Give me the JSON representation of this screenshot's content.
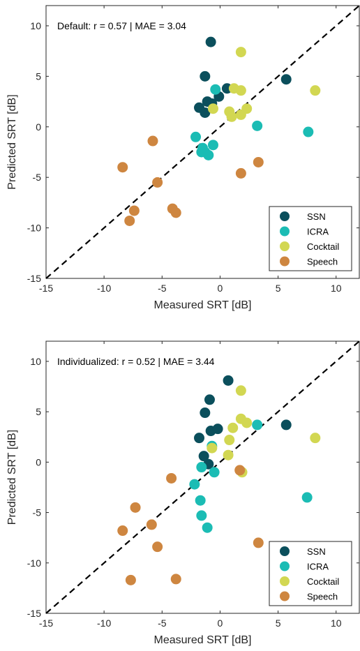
{
  "chart_data": [
    {
      "type": "scatter",
      "title": "",
      "annotation": "Default:  r = 0.57 | MAE = 3.04",
      "xlabel": "Measured SRT [dB]",
      "ylabel": "Predicted SRT [dB]",
      "xlim": [
        -15,
        12
      ],
      "ylim": [
        -15,
        12
      ],
      "xticks": [
        -15,
        -10,
        -5,
        0,
        5,
        10
      ],
      "yticks": [
        -15,
        -10,
        -5,
        0,
        5,
        10
      ],
      "identity_line": true,
      "grid": false,
      "legend_position": "bottom-right",
      "series": [
        {
          "name": "SSN",
          "color": "#0b4f5c",
          "points": [
            [
              -0.8,
              8.4
            ],
            [
              -1.3,
              5.0
            ],
            [
              0.6,
              3.8
            ],
            [
              5.7,
              4.7
            ],
            [
              -1.1,
              2.5
            ],
            [
              -1.8,
              1.9
            ],
            [
              -1.3,
              1.4
            ],
            [
              -0.1,
              3.0
            ],
            [
              -0.7,
              2.3
            ]
          ]
        },
        {
          "name": "ICRA",
          "color": "#1bbcb4",
          "points": [
            [
              -0.4,
              3.7
            ],
            [
              -2.1,
              -1.0
            ],
            [
              -1.5,
              -2.1
            ],
            [
              -1.3,
              -2.5
            ],
            [
              -0.6,
              -1.8
            ],
            [
              -1.6,
              -2.5
            ],
            [
              -1.0,
              -2.8
            ],
            [
              3.2,
              0.1
            ],
            [
              7.6,
              -0.5
            ]
          ]
        },
        {
          "name": "Cocktail",
          "color": "#d2d752",
          "points": [
            [
              1.8,
              7.4
            ],
            [
              1.2,
              3.8
            ],
            [
              1.8,
              3.6
            ],
            [
              -0.6,
              1.8
            ],
            [
              0.8,
              1.5
            ],
            [
              1.0,
              1.0
            ],
            [
              1.8,
              1.2
            ],
            [
              2.3,
              1.8
            ],
            [
              8.2,
              3.6
            ]
          ]
        },
        {
          "name": "Speech",
          "color": "#ce8640",
          "points": [
            [
              -8.4,
              -4.0
            ],
            [
              -5.8,
              -1.4
            ],
            [
              -5.4,
              -5.5
            ],
            [
              -7.4,
              -8.3
            ],
            [
              -7.8,
              -9.3
            ],
            [
              -4.1,
              -8.1
            ],
            [
              -3.8,
              -8.5
            ],
            [
              1.8,
              -4.6
            ],
            [
              3.3,
              -3.5
            ]
          ]
        }
      ]
    },
    {
      "type": "scatter",
      "title": "",
      "annotation": "Individualized:  r = 0.52 | MAE = 3.44",
      "xlabel": "Measured SRT [dB]",
      "ylabel": "Predicted SRT [dB]",
      "xlim": [
        -15,
        12
      ],
      "ylim": [
        -15,
        12
      ],
      "xticks": [
        -15,
        -10,
        -5,
        0,
        5,
        10
      ],
      "yticks": [
        -15,
        -10,
        -5,
        0,
        5,
        10
      ],
      "identity_line": true,
      "grid": false,
      "legend_position": "bottom-right",
      "series": [
        {
          "name": "SSN",
          "color": "#0b4f5c",
          "points": [
            [
              0.7,
              8.1
            ],
            [
              -0.9,
              6.2
            ],
            [
              -1.3,
              4.9
            ],
            [
              -0.8,
              3.1
            ],
            [
              -0.2,
              3.3
            ],
            [
              -1.8,
              2.4
            ],
            [
              5.7,
              3.7
            ],
            [
              -1.4,
              0.6
            ],
            [
              -1.0,
              -0.2
            ]
          ]
        },
        {
          "name": "ICRA",
          "color": "#1bbcb4",
          "points": [
            [
              3.2,
              3.7
            ],
            [
              -0.7,
              1.6
            ],
            [
              -1.6,
              -0.5
            ],
            [
              -0.5,
              -1.0
            ],
            [
              -2.2,
              -2.2
            ],
            [
              -1.7,
              -3.8
            ],
            [
              -1.6,
              -5.3
            ],
            [
              -1.1,
              -6.5
            ],
            [
              7.5,
              -3.5
            ]
          ]
        },
        {
          "name": "Cocktail",
          "color": "#d2d752",
          "points": [
            [
              1.8,
              7.1
            ],
            [
              1.8,
              4.3
            ],
            [
              2.3,
              3.9
            ],
            [
              1.1,
              3.4
            ],
            [
              0.8,
              2.2
            ],
            [
              -0.7,
              1.4
            ],
            [
              0.7,
              0.7
            ],
            [
              1.9,
              -1.0
            ],
            [
              8.2,
              2.4
            ]
          ]
        },
        {
          "name": "Speech",
          "color": "#ce8640",
          "points": [
            [
              -4.2,
              -1.6
            ],
            [
              -7.3,
              -4.5
            ],
            [
              -5.9,
              -6.2
            ],
            [
              -8.4,
              -6.8
            ],
            [
              -5.4,
              -8.4
            ],
            [
              -7.7,
              -11.7
            ],
            [
              -3.8,
              -11.6
            ],
            [
              1.7,
              -0.8
            ],
            [
              3.3,
              -8.0
            ]
          ]
        }
      ]
    }
  ]
}
